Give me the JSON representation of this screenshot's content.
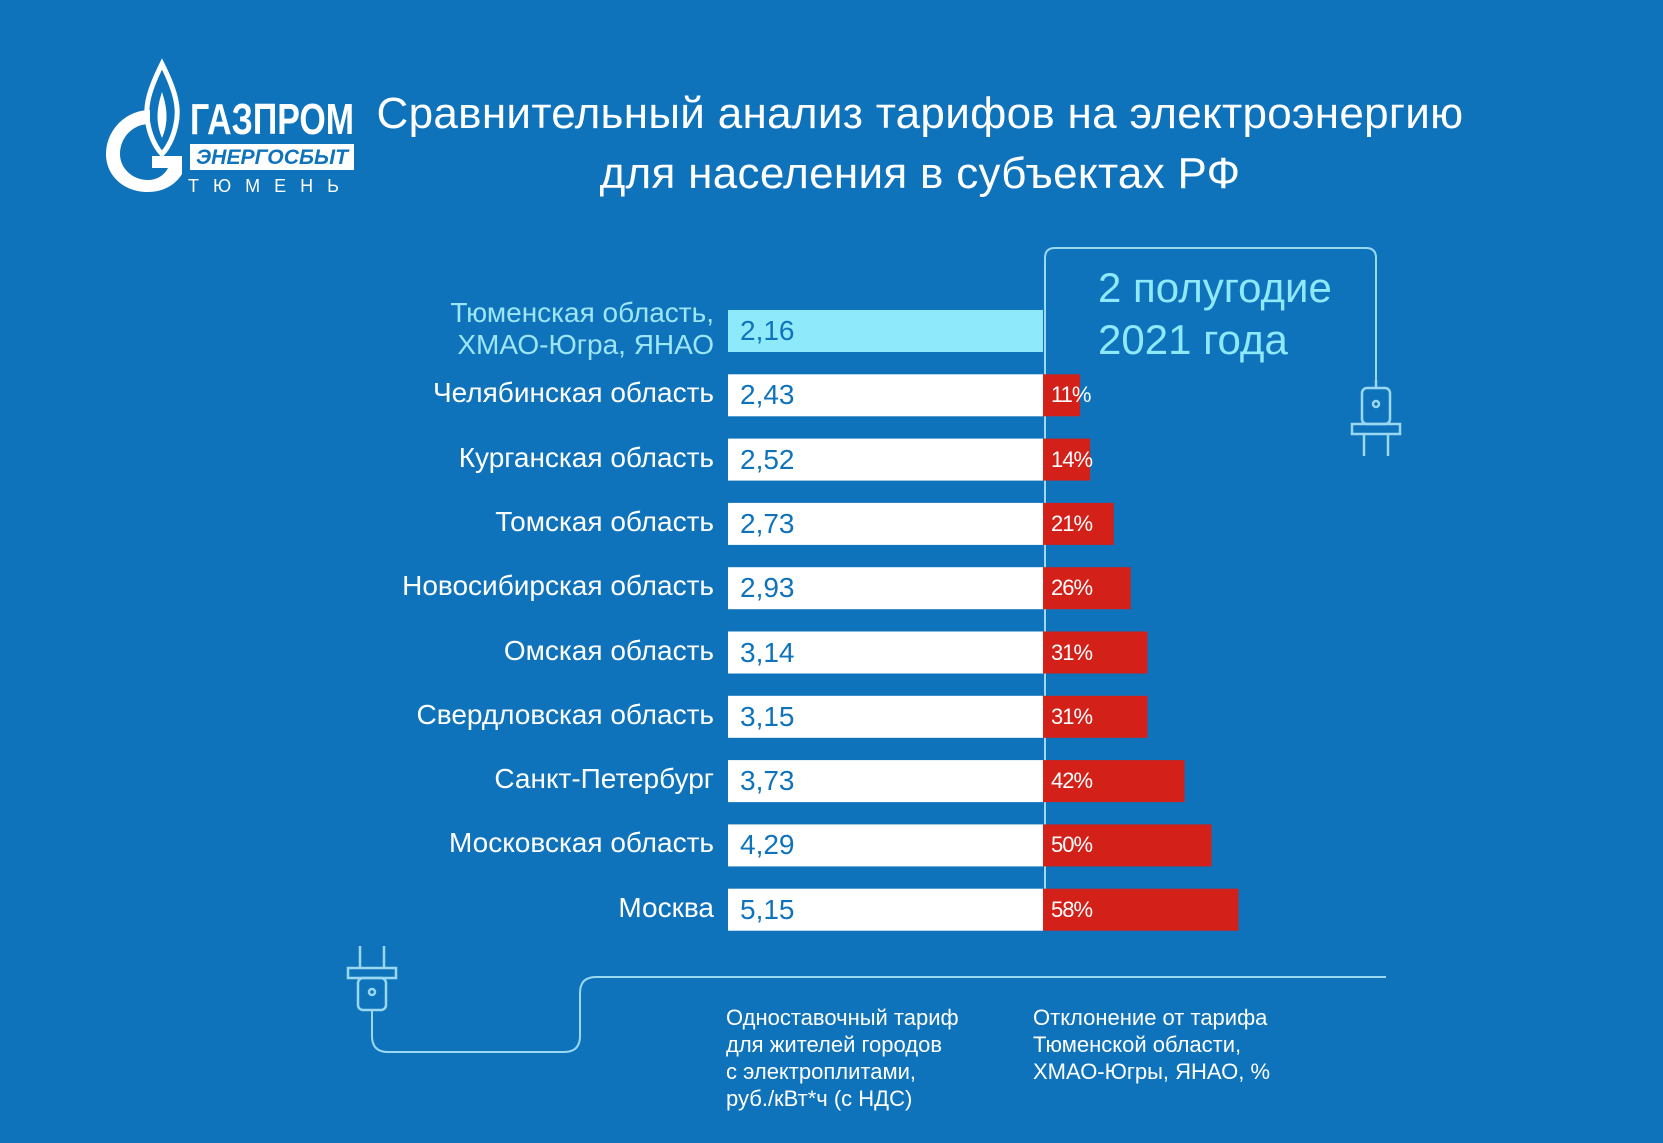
{
  "logo": {
    "brand": "ГАЗПРОМ",
    "sub": "ЭНЕРГОСБЫТ",
    "city": "ТЮМЕНЬ"
  },
  "title": {
    "line1": "Сравнительный анализ тарифов на электроэнергию",
    "line2": "для населения в субъектах РФ"
  },
  "period": {
    "line1": "2 полугодие",
    "line2": "2021 года"
  },
  "colors": {
    "background": "#0f73bc",
    "base_bar": "#ffffff",
    "highlight_bar": "#8ee9fb",
    "deviation_bar": "#d32018",
    "line": "#9ad8f0"
  },
  "chart_data": {
    "type": "bar",
    "orientation": "horizontal",
    "base_region": "Тюменская область, ХМАО-Югра, ЯНАО",
    "categories": [
      "Тюменская область, ХМАО-Югра, ЯНАО",
      "Челябинская область",
      "Курганская область",
      "Томская область",
      "Новосибирская область",
      "Омская область",
      "Свердловская область",
      "Санкт-Петербург",
      "Московская область",
      "Москва"
    ],
    "label_lines": [
      [
        "Тюменская область,",
        "ХМАО-Югра, ЯНАО"
      ],
      [
        "Челябинская область"
      ],
      [
        "Курганская область"
      ],
      [
        "Томская область"
      ],
      [
        "Новосибирская область"
      ],
      [
        "Омская область"
      ],
      [
        "Свердловская область"
      ],
      [
        "Санкт-Петербург"
      ],
      [
        "Московская область"
      ],
      [
        "Москва"
      ]
    ],
    "series": [
      {
        "name": "Одноставочный тариф для жителей городов с электроплитами, руб./кВт*ч (с НДС)",
        "values": [
          2.16,
          2.43,
          2.52,
          2.73,
          2.93,
          3.14,
          3.15,
          3.73,
          4.29,
          5.15
        ],
        "labels": [
          "2,16",
          "2,43",
          "2,52",
          "2,73",
          "2,93",
          "3,14",
          "3,15",
          "3,73",
          "4,29",
          "5,15"
        ]
      },
      {
        "name": "Отклонение от тарифа Тюменской области, ХМАО-Югры, ЯНАО, %",
        "values": [
          0,
          11,
          14,
          21,
          26,
          31,
          31,
          42,
          50,
          58
        ],
        "labels": [
          "",
          "11%",
          "14%",
          "21%",
          "26%",
          "31%",
          "31%",
          "42%",
          "50%",
          "58%"
        ]
      }
    ],
    "legend": {
      "tariff": [
        "Одноставочный тариф",
        "для жителей городов",
        "с электроплитами,",
        "руб./кВт*ч (с НДС)"
      ],
      "deviation": [
        "Отклонение от тарифа",
        "Тюменской области,",
        "ХМАО-Югры, ЯНАО, %"
      ]
    }
  }
}
